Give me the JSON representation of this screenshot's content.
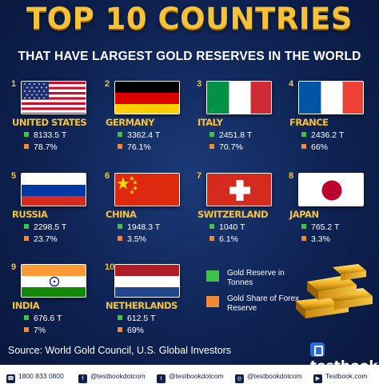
{
  "title": "TOP 10 COUNTRIES",
  "subtitle": "THAT HAVE LARGEST GOLD RESERVES IN THE WORLD",
  "countries": [
    {
      "rank": "1",
      "name": "UNITED STATES",
      "reserve": "8133.5 T",
      "share": "78.7%",
      "flag": "us-flag-icon"
    },
    {
      "rank": "2",
      "name": "GERMANY",
      "reserve": "3362.4 T",
      "share": "76.1%",
      "flag": "germany-flag-icon"
    },
    {
      "rank": "3",
      "name": "ITALY",
      "reserve": "2451.8 T",
      "share": "70.7%",
      "flag": "italy-flag-icon"
    },
    {
      "rank": "4",
      "name": "FRANCE",
      "reserve": "2436.2 T",
      "share": "66%",
      "flag": "france-flag-icon"
    },
    {
      "rank": "5",
      "name": "RUSSIA",
      "reserve": "2298.5 T",
      "share": "23.7%",
      "flag": "russia-flag-icon"
    },
    {
      "rank": "6",
      "name": "CHINA",
      "reserve": "1948.3 T",
      "share": "3.5%",
      "flag": "china-flag-icon"
    },
    {
      "rank": "7",
      "name": "SWITZERLAND",
      "reserve": "1040 T",
      "share": "6.1%",
      "flag": "switzerland-flag-icon"
    },
    {
      "rank": "8",
      "name": "JAPAN",
      "reserve": "765.2 T",
      "share": "3.3%",
      "flag": "japan-flag-icon"
    },
    {
      "rank": "9",
      "name": "INDIA",
      "reserve": "676.6 T",
      "share": "7%",
      "flag": "india-flag-icon"
    },
    {
      "rank": "10",
      "name": "NETHERLANDS",
      "reserve": "612.5 T",
      "share": "69%",
      "flag": "netherlands-flag-icon"
    }
  ],
  "legend": {
    "reserve_label": "Gold Reserve in Tonnes",
    "share_label": "Gold Share of Forex Reserve",
    "reserve_color": "#3ec24a",
    "share_color": "#f08a35"
  },
  "source": "Source: World Gold Council, U.S. Global Investors",
  "brand": "testbook",
  "footer": {
    "phone": "1800 833 0800",
    "facebook": "@testbookdotcom",
    "twitter": "@testbookdotcom",
    "instagram": "@testbookdotcom",
    "youtube": "Testbook.com"
  },
  "colors": {
    "accent": "#f6c23a",
    "background": "#0e2252"
  }
}
